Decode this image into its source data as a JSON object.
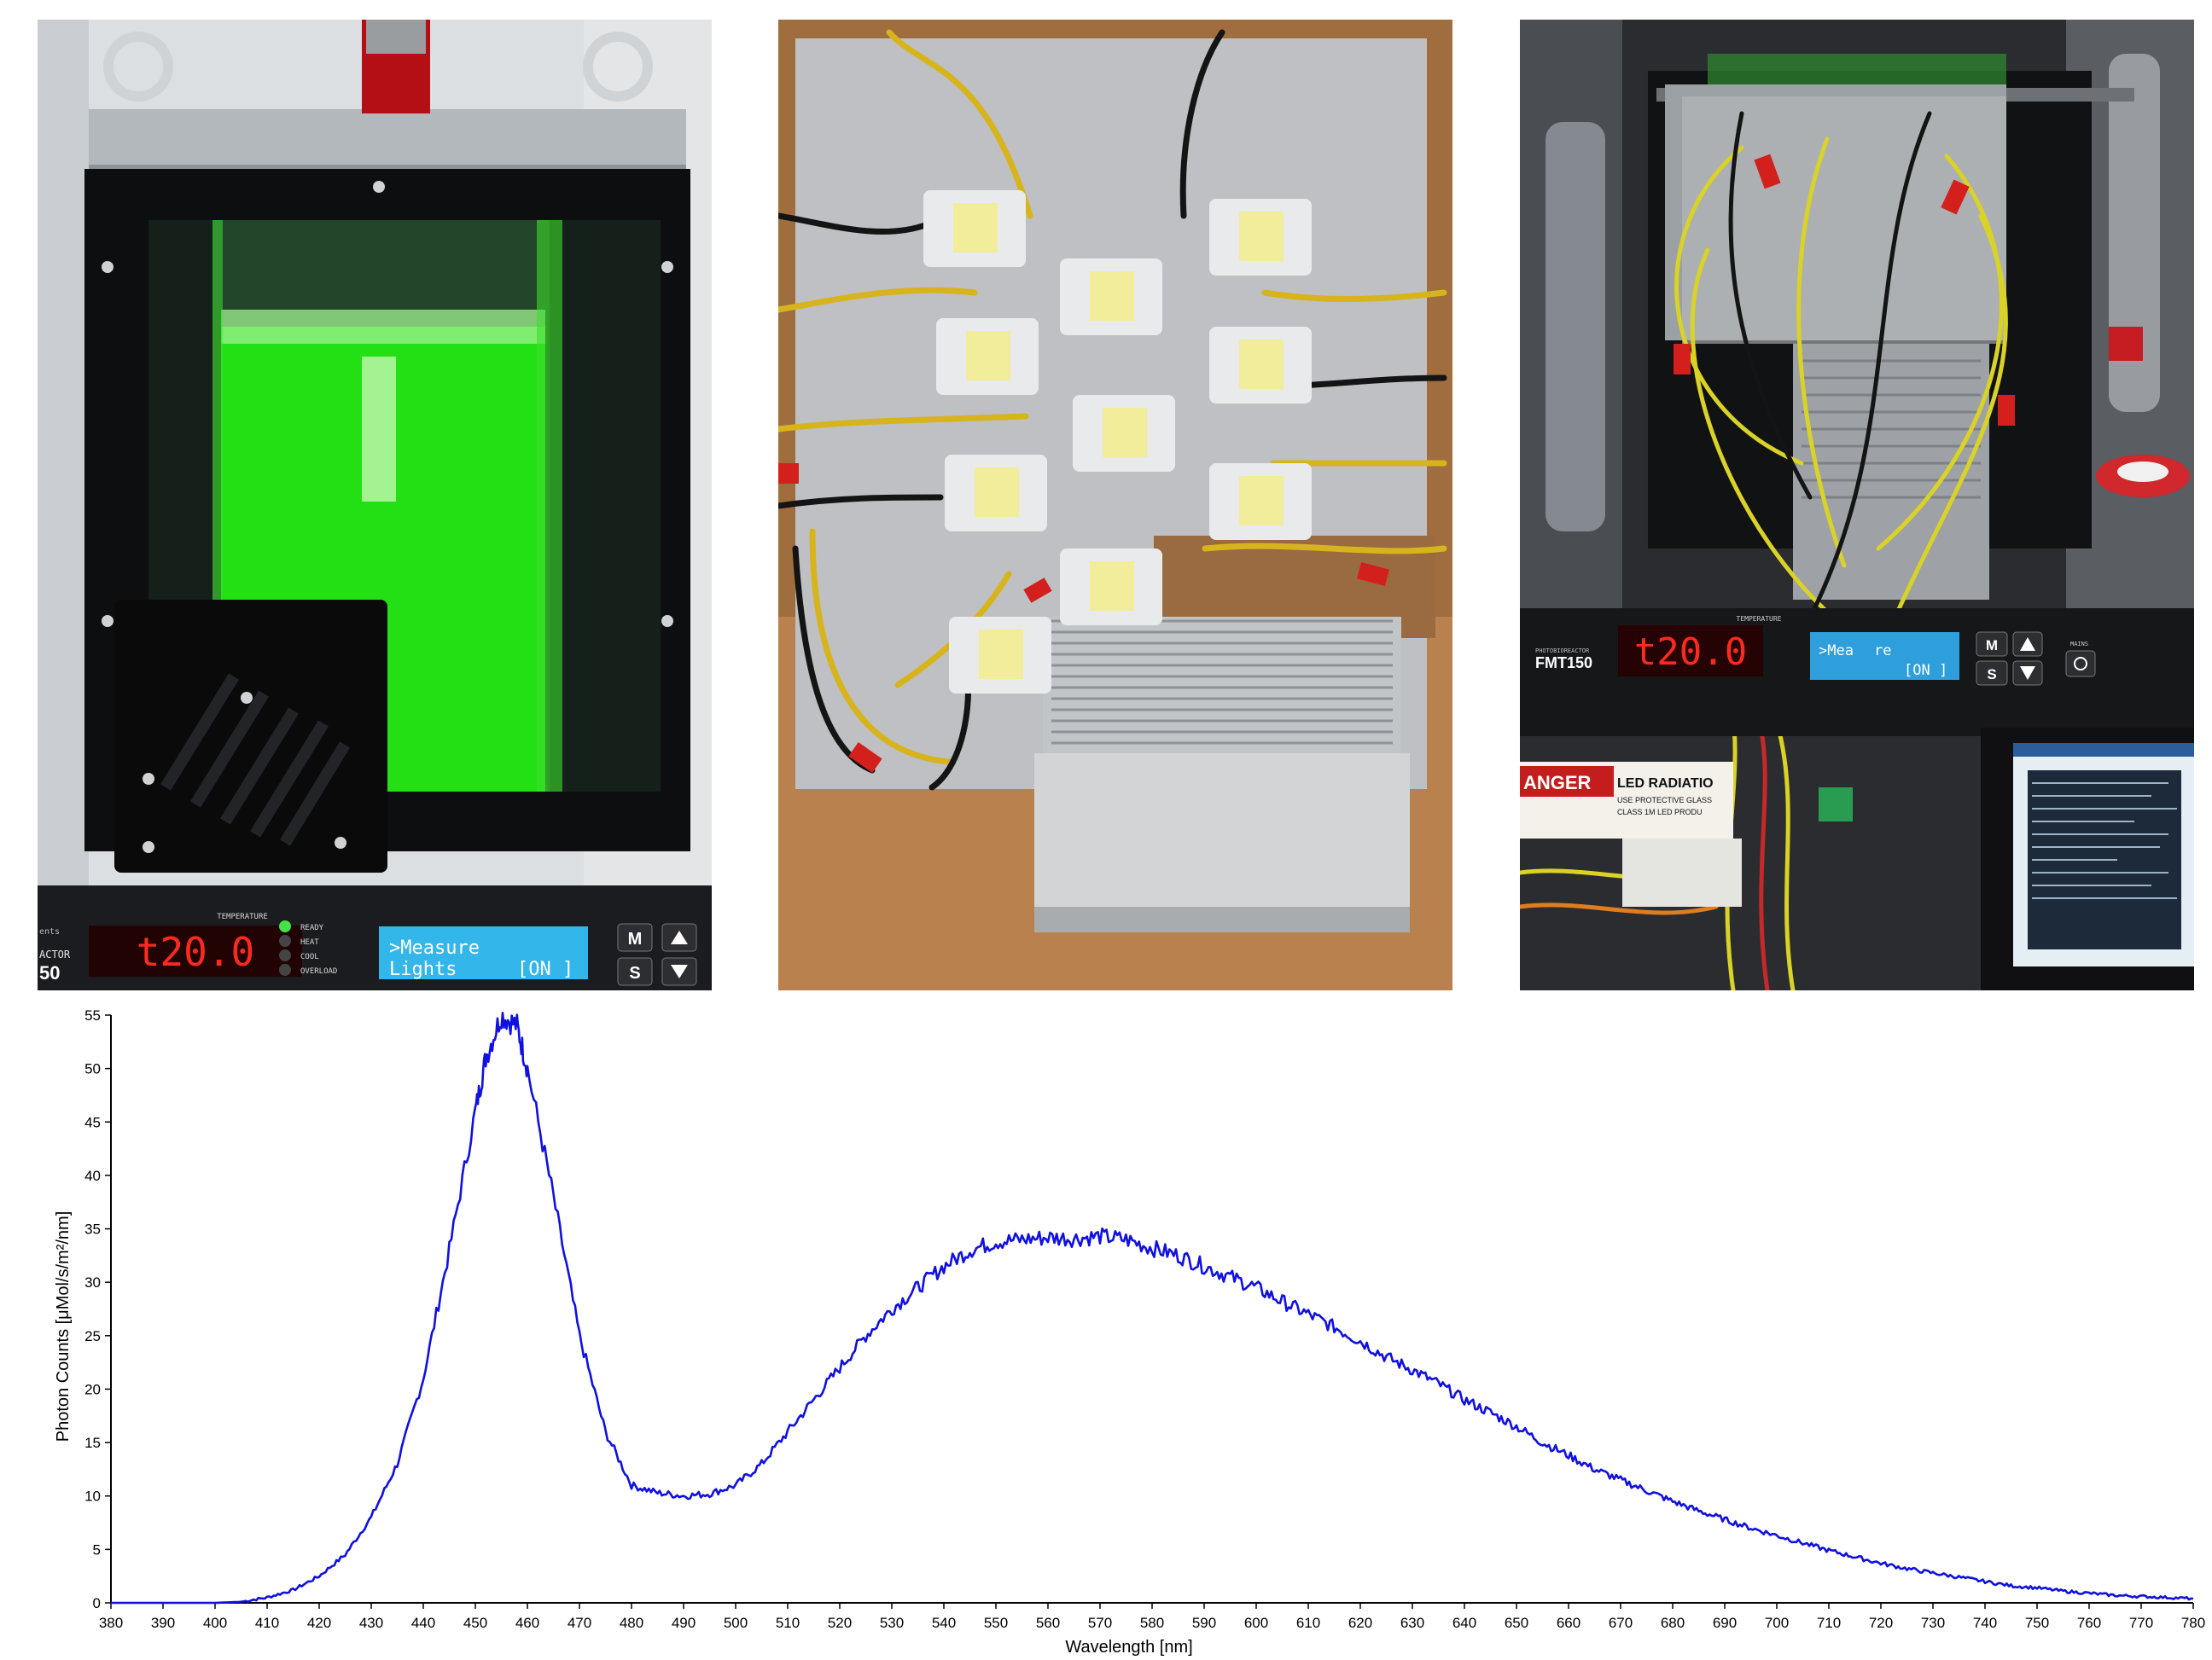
{
  "reactor_panel": {
    "display_readout": "t20.0",
    "display_header": "TEMPERATURE",
    "status_labels": [
      "READY",
      "HEAT",
      "COOL",
      "OVERLOAD"
    ],
    "lcd_line1": ">Measure",
    "lcd_line2": "Lights",
    "lcd_state": "[ON ]",
    "key_m": "M",
    "key_s": "S",
    "model_fragment": "ACTOR",
    "model_fragment_num": "50",
    "brand_fragment": "ents"
  },
  "setup_panel": {
    "display_readout": "t20.0",
    "display_header": "TEMPERATURE",
    "model_label": "FMT150",
    "model_sublabel": "PHOTOBIOREACTOR",
    "lcd_line1": ">Mea",
    "lcd_line1b": "re",
    "lcd_state": "[ON ]",
    "key_m": "M",
    "key_s": "S",
    "mains_label": "MAINS",
    "danger_label": "ANGER",
    "warning_title": "LED RADIATIO",
    "warning_line1": "USE PROTECTIVE GLASS",
    "warning_line2": "CLASS 1M LED PRODU"
  },
  "colors": {
    "spectrum_line": "#1010e0",
    "culture_green": "#22e014",
    "axis": "#000000"
  },
  "chart_data": {
    "type": "line",
    "title": "",
    "xlabel": "Wavelength [nm]",
    "ylabel": "Photon Counts [μMol/s/m²/nm]",
    "xlim": [
      380,
      780
    ],
    "ylim": [
      0,
      55
    ],
    "xticks": [
      380,
      390,
      400,
      410,
      420,
      430,
      440,
      450,
      460,
      470,
      480,
      490,
      500,
      510,
      520,
      530,
      540,
      550,
      560,
      570,
      580,
      590,
      600,
      610,
      620,
      630,
      640,
      650,
      660,
      670,
      680,
      690,
      700,
      710,
      720,
      730,
      740,
      750,
      760,
      770,
      780
    ],
    "yticks": [
      0,
      5,
      10,
      15,
      20,
      25,
      30,
      35,
      40,
      45,
      50,
      55
    ],
    "grid": false,
    "series": [
      {
        "x": [
          380,
          390,
          400,
          405,
          410,
          415,
          420,
          425,
          430,
          435,
          440,
          445,
          450,
          452,
          455,
          458,
          460,
          465,
          470,
          475,
          480,
          485,
          490,
          495,
          500,
          505,
          510,
          515,
          520,
          525,
          530,
          535,
          540,
          545,
          550,
          555,
          560,
          565,
          570,
          575,
          580,
          585,
          590,
          595,
          600,
          605,
          610,
          615,
          620,
          625,
          630,
          635,
          640,
          645,
          650,
          655,
          660,
          665,
          670,
          675,
          680,
          685,
          690,
          695,
          700,
          705,
          710,
          715,
          720,
          725,
          730,
          735,
          740,
          745,
          750,
          755,
          760,
          765,
          770,
          775,
          780
        ],
        "y": [
          0,
          0,
          0,
          0.1,
          0.5,
          1.2,
          2.5,
          4.5,
          8,
          13,
          21,
          33,
          46,
          51,
          55,
          54,
          50,
          38,
          25,
          16,
          11,
          10.3,
          10,
          10.2,
          11,
          13,
          16,
          19,
          22,
          25,
          27.5,
          29.5,
          31.5,
          33,
          33.8,
          34,
          34.2,
          34.1,
          34.3,
          34,
          33.2,
          32.5,
          31.5,
          30.5,
          29.5,
          28.2,
          27,
          25.8,
          24.5,
          23,
          21.8,
          20.5,
          19,
          17.8,
          16.5,
          15,
          13.8,
          12.5,
          11.5,
          10.5,
          9.5,
          8.6,
          7.8,
          7,
          6.3,
          5.6,
          4.9,
          4.3,
          3.7,
          3.2,
          2.8,
          2.4,
          2,
          1.6,
          1.4,
          1.1,
          0.9,
          0.7,
          0.6,
          0.5,
          0.4
        ]
      }
    ]
  }
}
